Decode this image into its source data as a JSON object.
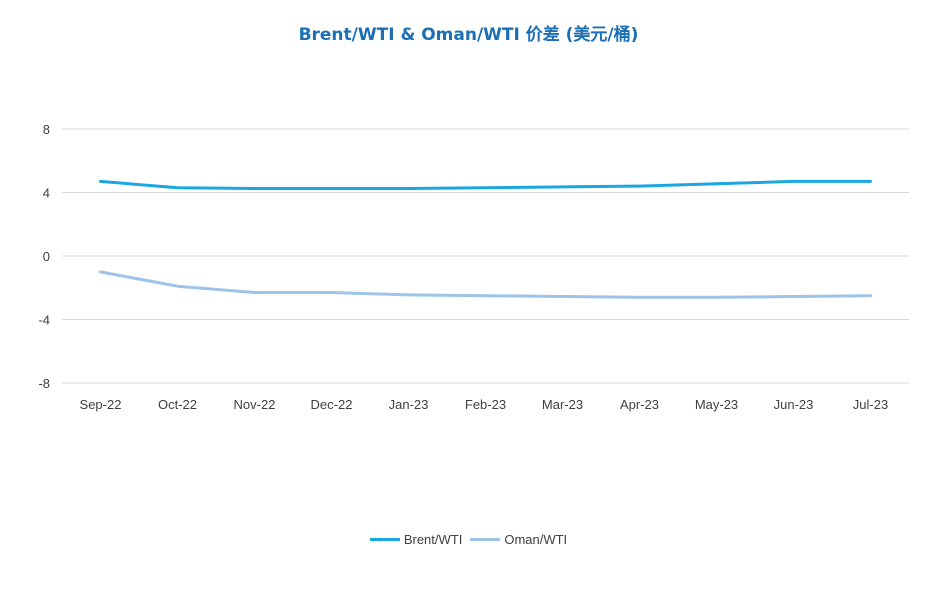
{
  "chart_data": {
    "type": "line",
    "title": "Brent/WTI & Oman/WTI 价差 (美元/桶)",
    "xlabel": "",
    "ylabel": "",
    "categories": [
      "Sep-22",
      "Oct-22",
      "Nov-22",
      "Dec-22",
      "Jan-23",
      "Feb-23",
      "Mar-23",
      "Apr-23",
      "May-23",
      "Jun-23",
      "Jul-23"
    ],
    "ylim": [
      -8,
      8
    ],
    "yticks": [
      -8,
      -4,
      0,
      4,
      8
    ],
    "grid": true,
    "legend_position": "bottom",
    "series": [
      {
        "name": "Brent/WTI",
        "color": "#1aa6e0",
        "values": [
          4.7,
          4.3,
          4.25,
          4.25,
          4.25,
          4.3,
          4.35,
          4.4,
          4.55,
          4.7,
          4.7
        ]
      },
      {
        "name": "Oman/WTI",
        "color": "#9dc3e6",
        "values": [
          -1.0,
          -1.9,
          -2.3,
          -2.3,
          -2.45,
          -2.5,
          -2.55,
          -2.6,
          -2.6,
          -2.55,
          -2.5
        ]
      }
    ]
  },
  "colors": {
    "title": "#1a6fb5",
    "axis_text": "#404040",
    "grid": "#d9d9d9"
  }
}
